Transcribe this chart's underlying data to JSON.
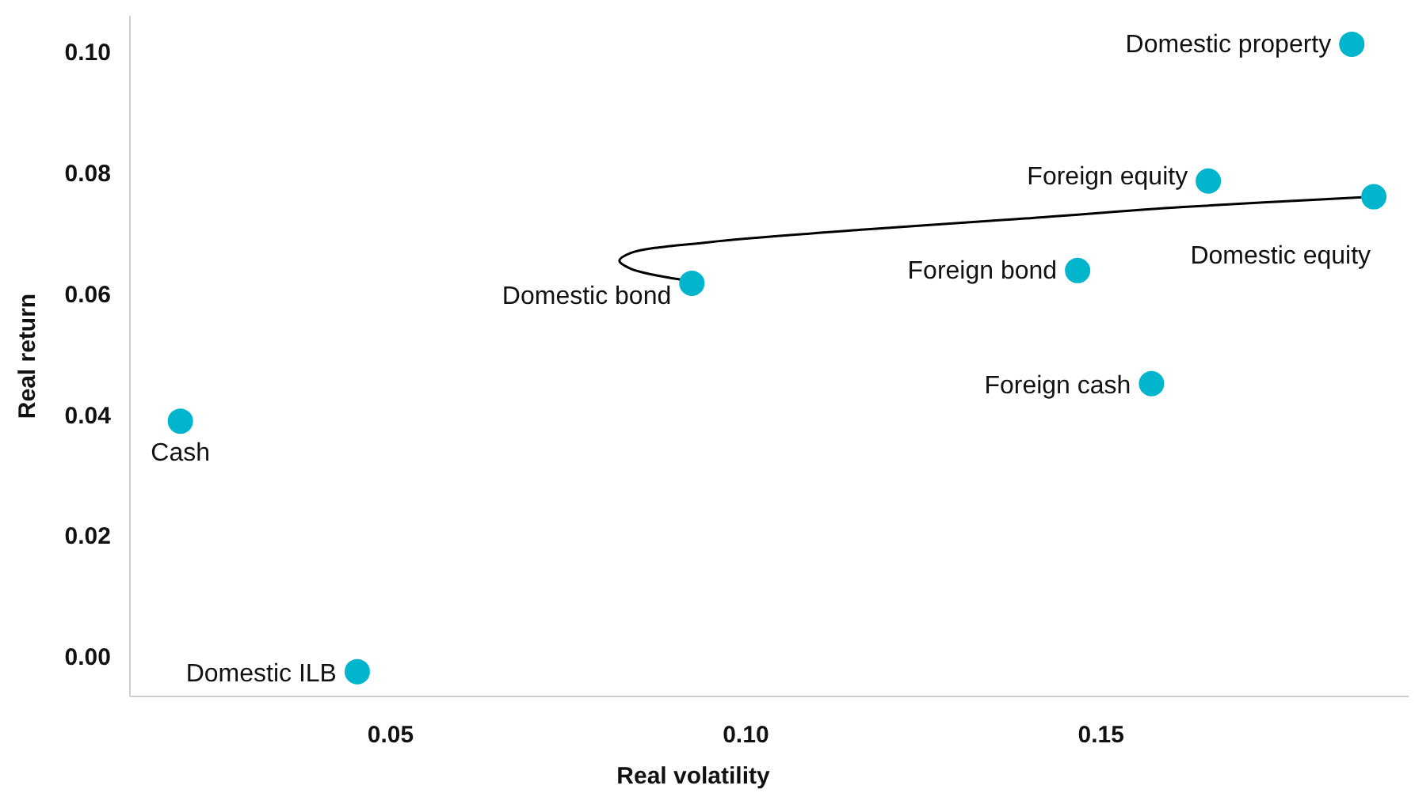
{
  "chart_data": {
    "type": "scatter",
    "xlabel": "Real volatility",
    "ylabel": "Real return",
    "xlim": [
      0.0133,
      0.1933
    ],
    "ylim": [
      -0.0065,
      0.106
    ],
    "xticks": [
      {
        "value": 0.05,
        "label": "0.05"
      },
      {
        "value": 0.1,
        "label": "0.10"
      },
      {
        "value": 0.15,
        "label": "0.15"
      }
    ],
    "yticks": [
      {
        "value": 0,
        "label": "0.00"
      },
      {
        "value": 0.02,
        "label": "0.02"
      },
      {
        "value": 0.04,
        "label": "0.04"
      },
      {
        "value": 0.06,
        "label": "0.06"
      },
      {
        "value": 0.08,
        "label": "0.08"
      },
      {
        "value": 0.1,
        "label": "0.10"
      }
    ],
    "grid": false,
    "marker": "circle",
    "series": [
      {
        "type": "scatter",
        "color": "#00b5cc",
        "x": [
          0.1853,
          0.1651,
          0.1884,
          0.1467,
          0.0924,
          0.1571,
          0.0204,
          0.0453
        ],
        "values": [
          0.1013,
          0.0787,
          0.0761,
          0.0639,
          0.0618,
          0.0452,
          0.039,
          -0.0024
        ]
      },
      {
        "type": "line",
        "color": "#000000",
        "line_style": "solid",
        "marker": "none",
        "x": [
          0.0909,
          0.0838,
          0.0822,
          0.0838,
          0.0949,
          0.1171,
          0.1393,
          0.1616,
          0.1884
        ],
        "values": [
          0.0624,
          0.0642,
          0.0655,
          0.0668,
          0.0686,
          0.0707,
          0.0725,
          0.0744,
          0.0761
        ]
      }
    ],
    "annotations": [
      {
        "text": "Domestic property",
        "x": 0.1853,
        "y": 0.1013
      },
      {
        "text": "Foreign equity",
        "x": 0.1651,
        "y": 0.0787
      },
      {
        "text": "Domestic equity",
        "x": 0.1884,
        "y": 0.0761
      },
      {
        "text": "Foreign bond",
        "x": 0.1467,
        "y": 0.0639
      },
      {
        "text": "Domestic bond",
        "x": 0.0924,
        "y": 0.0618
      },
      {
        "text": "Foreign cash",
        "x": 0.1571,
        "y": 0.0452
      },
      {
        "text": "Cash",
        "x": 0.0204,
        "y": 0.039
      },
      {
        "text": "Domestic ILB",
        "x": 0.0453,
        "y": -0.0024
      }
    ]
  }
}
